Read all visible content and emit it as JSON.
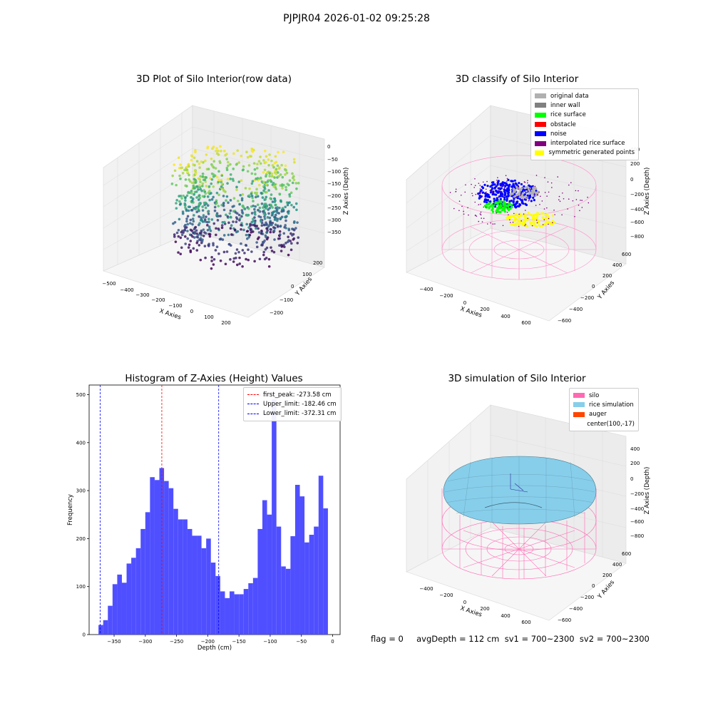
{
  "suptitle": "PJPJR04 2026-01-02 09:25:28",
  "panels": {
    "p1": {
      "title": "3D Plot of Silo Interior(row data)",
      "xlabel": "X Axies",
      "ylabel": "Y Axies",
      "zlabel": "Z Axies (Depth)",
      "xticks": [
        "−500",
        "−400",
        "−300",
        "−200",
        "−100",
        "0",
        "100",
        "200"
      ],
      "yticks": [
        "−200",
        "−100",
        "0",
        "100",
        "200"
      ],
      "zticks": [
        "0",
        "−50",
        "−100",
        "−150",
        "−200",
        "−250",
        "−300",
        "−350"
      ]
    },
    "p2": {
      "title": "3D classify of Silo Interior",
      "xlabel": "X Axies",
      "ylabel": "Y Axies",
      "zlabel": "Z Axies (Depth)",
      "xticks": [
        "−400",
        "−200",
        "0",
        "200",
        "400",
        "600"
      ],
      "yticks": [
        "−600",
        "−400",
        "−200",
        "0",
        "200",
        "400",
        "600"
      ],
      "zticks": [
        "400",
        "200",
        "0",
        "−200",
        "−400",
        "−600",
        "−800"
      ],
      "legend": [
        {
          "label": "original data",
          "color": "#b0b0b0"
        },
        {
          "label": "inner wall",
          "color": "#808080"
        },
        {
          "label": "rice surface",
          "color": "#00ff00"
        },
        {
          "label": "obstacle",
          "color": "#ff0000"
        },
        {
          "label": "noise",
          "color": "#0000ff"
        },
        {
          "label": "interpolated rice surface",
          "color": "#800080"
        },
        {
          "label": "symmetric generated points",
          "color": "#ffff00"
        }
      ]
    },
    "p3": {
      "title": "Histogram of Z-Axies (Height) Values",
      "xlabel": "Depth (cm)",
      "ylabel": "Frequency",
      "legend": [
        {
          "label": "first_peak: -273.58 cm",
          "color": "#ff0000"
        },
        {
          "label": "Upper_limit: -182.46 cm",
          "color": "#0000ff"
        },
        {
          "label": "Lower_limit: -372.31 cm",
          "color": "#0000ff"
        }
      ]
    },
    "p4": {
      "title": "3D simulation of Silo Interior",
      "xlabel": "X Axies",
      "ylabel": "Y Axies",
      "zlabel": "Z Axies (Depth)",
      "xticks": [
        "−400",
        "−200",
        "0",
        "200",
        "400",
        "600"
      ],
      "yticks": [
        "−600",
        "−400",
        "−200",
        "0",
        "200",
        "400",
        "600"
      ],
      "zticks": [
        "400",
        "200",
        "0",
        "−200",
        "−400",
        "−600",
        "−800"
      ],
      "legend": [
        {
          "label": "silo",
          "color": "#ff69b4"
        },
        {
          "label": "rice simulation",
          "color": "#87ceeb"
        },
        {
          "label": "auger",
          "color": "#ff4500"
        },
        {
          "label": "center(100,-17)",
          "color": ""
        }
      ]
    }
  },
  "status_line": "flag = 0     avgDepth = 112 cm  sv1 = 700~2300  sv2 = 700~2300",
  "chart_data": [
    {
      "type": "scatter",
      "title": "3D Plot of Silo Interior(row data)",
      "xlabel": "X Axies",
      "ylabel": "Y Axies",
      "zlabel": "Z Axies (Depth)",
      "xlim": [
        -500,
        250
      ],
      "ylim": [
        -250,
        250
      ],
      "zlim": [
        -380,
        10
      ],
      "colormap": "viridis"
    },
    {
      "type": "scatter",
      "title": "3D classify of Silo Interior",
      "xlabel": "X Axies",
      "ylabel": "Y Axies",
      "zlabel": "Z Axies (Depth)",
      "xlim": [
        -500,
        700
      ],
      "ylim": [
        -650,
        650
      ],
      "zlim": [
        -900,
        450
      ]
    },
    {
      "type": "bar",
      "title": "Histogram of Z-Axies (Height) Values",
      "xlabel": "Depth (cm)",
      "ylabel": "Frequency",
      "color": "#4b4bff",
      "xlim": [
        -390,
        12
      ],
      "ylim": [
        0,
        520
      ],
      "xticks": [
        -350,
        -300,
        -250,
        -200,
        -150,
        -100,
        -50,
        0
      ],
      "yticks": [
        0,
        100,
        200,
        300,
        400,
        500
      ],
      "bin_start": -375,
      "bin_width": 7.5,
      "values": [
        20,
        30,
        60,
        105,
        125,
        108,
        148,
        160,
        180,
        220,
        255,
        328,
        322,
        347,
        320,
        305,
        262,
        240,
        240,
        220,
        206,
        206,
        180,
        200,
        150,
        122,
        90,
        76,
        90,
        84,
        84,
        95,
        107,
        118,
        220,
        280,
        250,
        490,
        225,
        142,
        137,
        205,
        312,
        288,
        192,
        208,
        225,
        331,
        263
      ],
      "vlines": [
        {
          "label": "first_peak: -273.58 cm",
          "x": -273.58,
          "color": "#ff0000"
        },
        {
          "label": "Upper_limit: -182.46 cm",
          "x": -182.46,
          "color": "#0000ff"
        },
        {
          "label": "Lower_limit: -372.31 cm",
          "x": -372.31,
          "color": "#0000ff"
        }
      ],
      "legend_position": "upper right"
    },
    {
      "type": "area",
      "title": "3D simulation of Silo Interior",
      "xlabel": "X Axies",
      "ylabel": "Y Axies",
      "zlabel": "Z Axies (Depth)",
      "xlim": [
        -500,
        700
      ],
      "ylim": [
        -650,
        650
      ],
      "zlim": [
        -900,
        450
      ]
    }
  ]
}
